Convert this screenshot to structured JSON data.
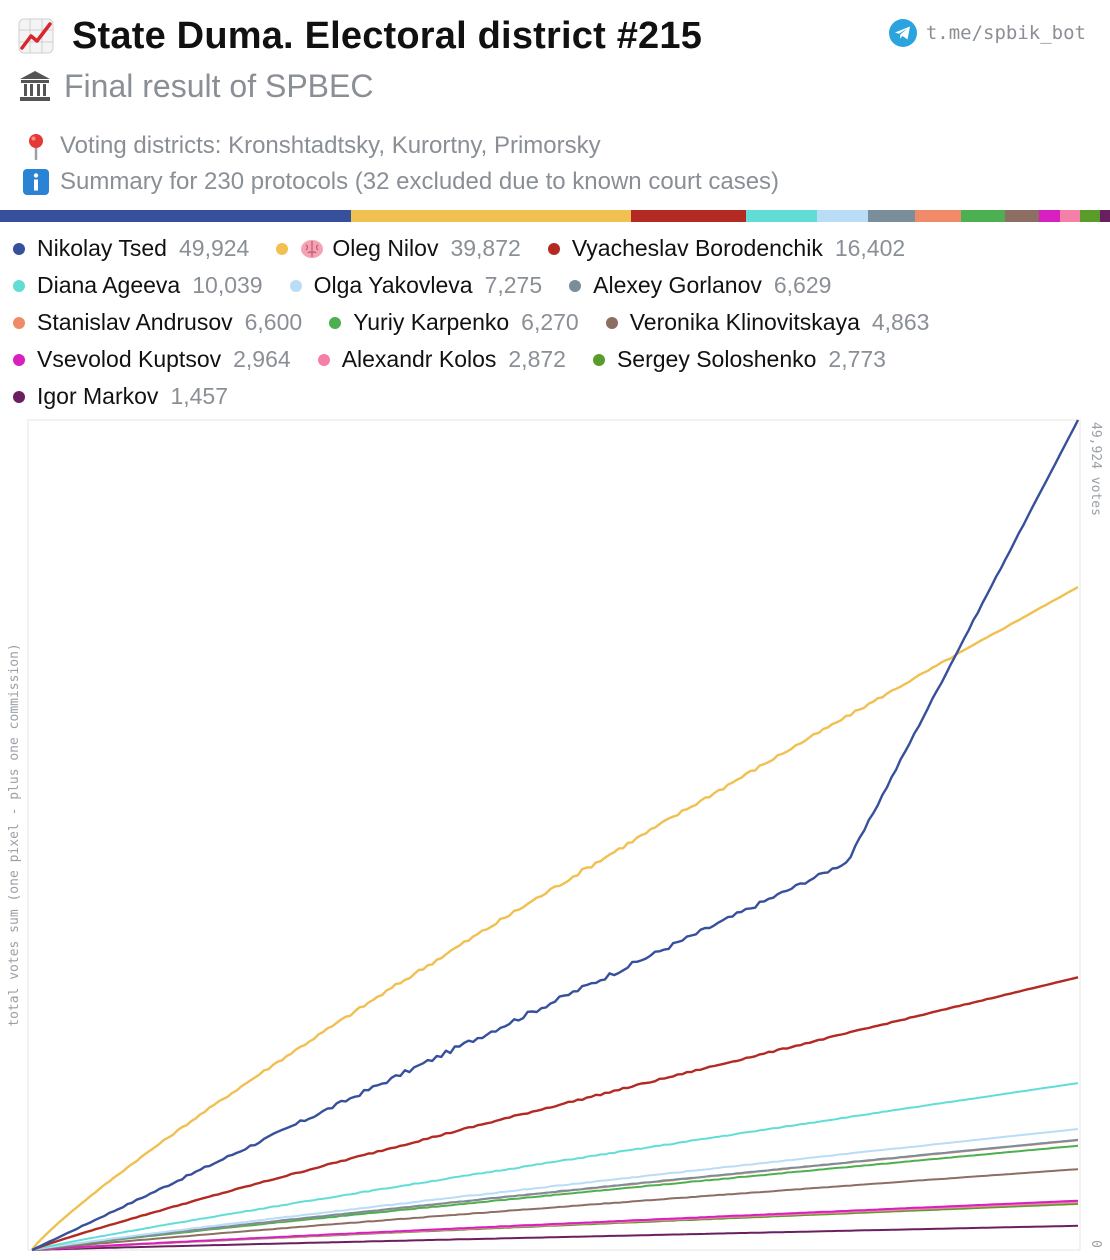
{
  "header": {
    "title": "State Duma. Electoral district #215",
    "title_icon": "chart-increasing-icon",
    "subtitle": "Final result of SPBEC",
    "subtitle_icon": "classical-building-icon",
    "info": [
      {
        "icon": "round-pushpin-icon",
        "text": "Voting districts: Kronshtadtsky, Kurortny, Primorsky"
      },
      {
        "icon": "information-icon",
        "text": "Summary for 230 protocols (32 excluded due to known court cases)"
      }
    ],
    "link": {
      "icon": "telegram-icon",
      "text": "t.me/spbik_bot"
    }
  },
  "chart_data": {
    "type": "line",
    "xlabel": "",
    "ylabel": "total votes sum (one pixel - plus one commission)",
    "ylim": [
      0,
      49924
    ],
    "y_top_label": "49,924 votes",
    "y_bottom_label": "0",
    "x": {
      "start": 0,
      "end": 230
    },
    "series": [
      {
        "name": "Nikolay Tsed",
        "value": 49924,
        "value_label": "49,924",
        "color": "#37509c",
        "brain": false
      },
      {
        "name": "Oleg Nilov",
        "value": 39872,
        "value_label": "39,872",
        "color": "#f0c050",
        "brain": true
      },
      {
        "name": "Vyacheslav Borodenchik",
        "value": 16402,
        "value_label": "16,402",
        "color": "#b22a22",
        "brain": false
      },
      {
        "name": "Diana Ageeva",
        "value": 10039,
        "value_label": "10,039",
        "color": "#62ddd6",
        "brain": false
      },
      {
        "name": "Olga Yakovleva",
        "value": 7275,
        "value_label": "7,275",
        "color": "#b9dcf7",
        "brain": false
      },
      {
        "name": "Alexey Gorlanov",
        "value": 6629,
        "value_label": "6,629",
        "color": "#7a8e9a",
        "brain": false
      },
      {
        "name": "Stanislav Andrusov",
        "value": 6600,
        "value_label": "6,600",
        "color": "#f18a68",
        "brain": false
      },
      {
        "name": "Yuriy Karpenko",
        "value": 6270,
        "value_label": "6,270",
        "color": "#4caf50",
        "brain": false
      },
      {
        "name": "Veronika Klinovitskaya",
        "value": 4863,
        "value_label": "4,863",
        "color": "#8d6e63",
        "brain": false
      },
      {
        "name": "Vsevolod Kuptsov",
        "value": 2964,
        "value_label": "2,964",
        "color": "#d81fbf",
        "brain": false
      },
      {
        "name": "Alexandr Kolos",
        "value": 2872,
        "value_label": "2,872",
        "color": "#f47fa7",
        "brain": false
      },
      {
        "name": "Sergey Soloshenko",
        "value": 2773,
        "value_label": "2,773",
        "color": "#5a9c2a",
        "brain": false
      },
      {
        "name": "Igor Markov",
        "value": 1457,
        "value_label": "1,457",
        "color": "#6a1f60",
        "brain": false
      }
    ]
  }
}
